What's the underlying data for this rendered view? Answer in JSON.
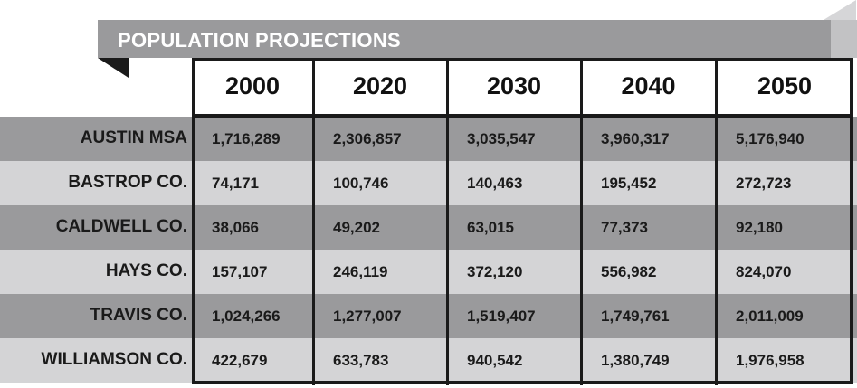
{
  "colors": {
    "banner": "#9a9a9c",
    "band_dark": "#9a9a9c",
    "band_light": "#d4d4d6",
    "header_bg": "#ffffff",
    "border": "#1a1a1a",
    "title_text": "#ffffff"
  },
  "chart_data": {
    "type": "table",
    "title": "POPULATION PROJECTIONS",
    "columns": [
      "2000",
      "2020",
      "2030",
      "2040",
      "2050"
    ],
    "rows": [
      {
        "label": "AUSTIN MSA",
        "values": [
          "1,716,289",
          "2,306,857",
          "3,035,547",
          "3,960,317",
          "5,176,940"
        ]
      },
      {
        "label": "BASTROP CO.",
        "values": [
          "74,171",
          "100,746",
          "140,463",
          "195,452",
          "272,723"
        ]
      },
      {
        "label": "CALDWELL CO.",
        "values": [
          "38,066",
          "49,202",
          "63,015",
          "77,373",
          "92,180"
        ]
      },
      {
        "label": "HAYS CO.",
        "values": [
          "157,107",
          "246,119",
          "372,120",
          "556,982",
          "824,070"
        ]
      },
      {
        "label": "TRAVIS CO.",
        "values": [
          "1,024,266",
          "1,277,007",
          "1,519,407",
          "1,749,761",
          "2,011,009"
        ]
      },
      {
        "label": "WILLIAMSON CO.",
        "values": [
          "422,679",
          "633,783",
          "940,542",
          "1,380,749",
          "1,976,958"
        ]
      }
    ]
  }
}
